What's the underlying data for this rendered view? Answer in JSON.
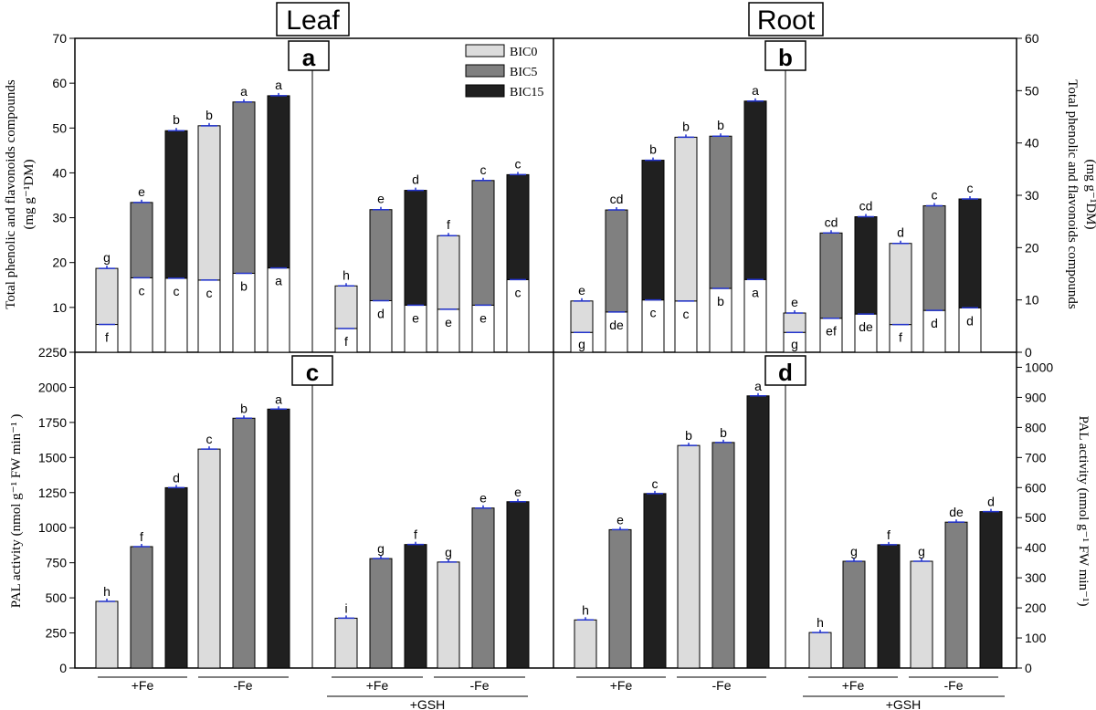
{
  "figure": {
    "organ_labels": [
      "Leaf",
      "Root"
    ],
    "panel_letters": [
      "a",
      "b",
      "c",
      "d"
    ],
    "group_labels": [
      "+Fe",
      "-Fe",
      "+Fe",
      "-Fe"
    ],
    "gsh_label": "+GSH",
    "ylabel_top_left_1": "Total phenolic and flavonoids compounds",
    "ylabel_top_left_2": "(mg g⁻¹DM)",
    "ylabel_top_right_1": "Total phenolic and flavonoids compounds",
    "ylabel_top_right_2": "(mg g⁻¹DM)",
    "ylabel_bottom_left": "PAL activity (nmol g⁻¹ FW min⁻¹ )",
    "ylabel_bottom_right": "PAL activity (nmol g⁻¹ FW min⁻¹)",
    "colors": {
      "BIC0": "#dcdcdc",
      "BIC5": "#808080",
      "BIC15": "#202020",
      "error": "#2233cc"
    }
  },
  "chart_data": [
    {
      "panel": "a",
      "type": "bar",
      "stacked": true,
      "organ": "Leaf",
      "legend": [
        "BIC0",
        "BIC5",
        "BIC15"
      ],
      "legend_position": "top",
      "ylim": [
        0,
        70
      ],
      "yticks": [
        0,
        10,
        20,
        30,
        40,
        50,
        60,
        70
      ],
      "bars": [
        {
          "series": "BIC0",
          "lower": 6.2,
          "total": 18.7,
          "total_letter": "g",
          "lower_letter": "f"
        },
        {
          "series": "BIC5",
          "lower": 16.6,
          "total": 33.4,
          "total_letter": "e",
          "lower_letter": "c"
        },
        {
          "series": "BIC15",
          "lower": 16.5,
          "total": 49.4,
          "total_letter": "b",
          "lower_letter": "c"
        },
        {
          "series": "BIC0",
          "lower": 16.1,
          "total": 50.5,
          "total_letter": "b",
          "lower_letter": "c"
        },
        {
          "series": "BIC5",
          "lower": 17.6,
          "total": 55.8,
          "total_letter": "a",
          "lower_letter": "b"
        },
        {
          "series": "BIC15",
          "lower": 18.8,
          "total": 57.2,
          "total_letter": "a",
          "lower_letter": "a"
        },
        {
          "series": "BIC0",
          "lower": 5.3,
          "total": 14.8,
          "total_letter": "h",
          "lower_letter": "f"
        },
        {
          "series": "BIC5",
          "lower": 11.5,
          "total": 31.8,
          "total_letter": "e",
          "lower_letter": "d"
        },
        {
          "series": "BIC15",
          "lower": 10.5,
          "total": 36.1,
          "total_letter": "d",
          "lower_letter": "e"
        },
        {
          "series": "BIC0",
          "lower": 9.6,
          "total": 26.0,
          "total_letter": "f",
          "lower_letter": "e"
        },
        {
          "series": "BIC5",
          "lower": 10.5,
          "total": 38.3,
          "total_letter": "c",
          "lower_letter": "e"
        },
        {
          "series": "BIC15",
          "lower": 16.2,
          "total": 39.6,
          "total_letter": "c",
          "lower_letter": "c"
        }
      ]
    },
    {
      "panel": "b",
      "type": "bar",
      "stacked": true,
      "organ": "Root",
      "ylim": [
        0,
        60
      ],
      "yticks": [
        0,
        10,
        20,
        30,
        40,
        50,
        60
      ],
      "bars": [
        {
          "series": "BIC0",
          "lower": 3.8,
          "total": 9.8,
          "total_letter": "e",
          "lower_letter": "g"
        },
        {
          "series": "BIC5",
          "lower": 7.7,
          "total": 27.2,
          "total_letter": "cd",
          "lower_letter": "de"
        },
        {
          "series": "BIC15",
          "lower": 10.0,
          "total": 36.7,
          "total_letter": "b",
          "lower_letter": "c"
        },
        {
          "series": "BIC0",
          "lower": 9.8,
          "total": 41.1,
          "total_letter": "b",
          "lower_letter": "c"
        },
        {
          "series": "BIC5",
          "lower": 12.2,
          "total": 41.3,
          "total_letter": "b",
          "lower_letter": "b"
        },
        {
          "series": "BIC15",
          "lower": 13.9,
          "total": 48.0,
          "total_letter": "a",
          "lower_letter": "a"
        },
        {
          "series": "BIC0",
          "lower": 3.8,
          "total": 7.5,
          "total_letter": "e",
          "lower_letter": "g"
        },
        {
          "series": "BIC5",
          "lower": 6.5,
          "total": 22.8,
          "total_letter": "cd",
          "lower_letter": "ef"
        },
        {
          "series": "BIC15",
          "lower": 7.3,
          "total": 25.9,
          "total_letter": "cd",
          "lower_letter": "de"
        },
        {
          "series": "BIC0",
          "lower": 5.3,
          "total": 20.8,
          "total_letter": "d",
          "lower_letter": "f"
        },
        {
          "series": "BIC5",
          "lower": 8.0,
          "total": 28.0,
          "total_letter": "c",
          "lower_letter": "d"
        },
        {
          "series": "BIC15",
          "lower": 8.5,
          "total": 29.3,
          "total_letter": "c",
          "lower_letter": "d"
        }
      ]
    },
    {
      "panel": "c",
      "type": "bar",
      "organ": "Leaf",
      "ylim": [
        0,
        2250
      ],
      "yticks": [
        0,
        250,
        500,
        750,
        1000,
        1250,
        1500,
        1750,
        2000,
        2250
      ],
      "bars": [
        {
          "series": "BIC0",
          "value": 475,
          "letter": "h"
        },
        {
          "series": "BIC5",
          "value": 865,
          "letter": "f"
        },
        {
          "series": "BIC15",
          "value": 1285,
          "letter": "d"
        },
        {
          "series": "BIC0",
          "value": 1560,
          "letter": "c"
        },
        {
          "series": "BIC5",
          "value": 1780,
          "letter": "b"
        },
        {
          "series": "BIC15",
          "value": 1845,
          "letter": "a"
        },
        {
          "series": "BIC0",
          "value": 355,
          "letter": "i"
        },
        {
          "series": "BIC5",
          "value": 780,
          "letter": "g"
        },
        {
          "series": "BIC15",
          "value": 880,
          "letter": "f"
        },
        {
          "series": "BIC0",
          "value": 755,
          "letter": "g"
        },
        {
          "series": "BIC5",
          "value": 1140,
          "letter": "e"
        },
        {
          "series": "BIC15",
          "value": 1185,
          "letter": "e"
        }
      ]
    },
    {
      "panel": "d",
      "type": "bar",
      "organ": "Root",
      "ylim": [
        0,
        1050
      ],
      "yticks": [
        0,
        100,
        200,
        300,
        400,
        500,
        600,
        700,
        800,
        900,
        1000
      ],
      "bars": [
        {
          "series": "BIC0",
          "value": 160,
          "letter": "h"
        },
        {
          "series": "BIC5",
          "value": 460,
          "letter": "e"
        },
        {
          "series": "BIC15",
          "value": 580,
          "letter": "c"
        },
        {
          "series": "BIC0",
          "value": 740,
          "letter": "b"
        },
        {
          "series": "BIC5",
          "value": 750,
          "letter": "b"
        },
        {
          "series": "BIC15",
          "value": 905,
          "letter": "a"
        },
        {
          "series": "BIC0",
          "value": 118,
          "letter": "h"
        },
        {
          "series": "BIC5",
          "value": 355,
          "letter": "g"
        },
        {
          "series": "BIC15",
          "value": 410,
          "letter": "f"
        },
        {
          "series": "BIC0",
          "value": 355,
          "letter": "g"
        },
        {
          "series": "BIC5",
          "value": 485,
          "letter": "de"
        },
        {
          "series": "BIC15",
          "value": 520,
          "letter": "d"
        }
      ]
    }
  ]
}
